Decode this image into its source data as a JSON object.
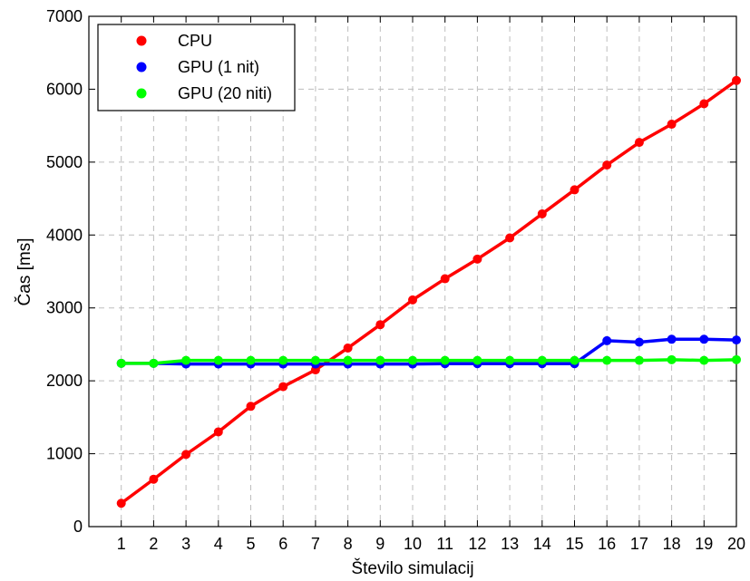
{
  "chart_data": {
    "type": "line",
    "title": "",
    "xlabel": "Število simulacij",
    "ylabel": "Čas [ms]",
    "x": [
      1,
      2,
      3,
      4,
      5,
      6,
      7,
      8,
      9,
      10,
      11,
      12,
      13,
      14,
      15,
      16,
      17,
      18,
      19,
      20
    ],
    "xlim": [
      0,
      20
    ],
    "ylim": [
      0,
      7000
    ],
    "yticks": [
      0,
      1000,
      2000,
      3000,
      4000,
      5000,
      6000,
      7000
    ],
    "grid": true,
    "legend_position": "top-left",
    "series": [
      {
        "name": "CPU",
        "color": "#ff0000",
        "values": [
          320,
          650,
          990,
          1300,
          1650,
          1920,
          2150,
          2450,
          2770,
          3110,
          3400,
          3670,
          3960,
          4290,
          4620,
          4960,
          5270,
          5520,
          5800,
          6120
        ]
      },
      {
        "name": "GPU (1 nit)",
        "color": "#0000ff",
        "values": [
          2240,
          2240,
          2230,
          2230,
          2230,
          2230,
          2230,
          2230,
          2230,
          2230,
          2235,
          2235,
          2235,
          2235,
          2235,
          2550,
          2530,
          2570,
          2570,
          2560
        ]
      },
      {
        "name": "GPU (20 niti)",
        "color": "#00ff00",
        "values": [
          2240,
          2240,
          2280,
          2280,
          2280,
          2280,
          2280,
          2280,
          2280,
          2280,
          2280,
          2280,
          2280,
          2280,
          2280,
          2280,
          2280,
          2290,
          2280,
          2290
        ]
      }
    ]
  }
}
